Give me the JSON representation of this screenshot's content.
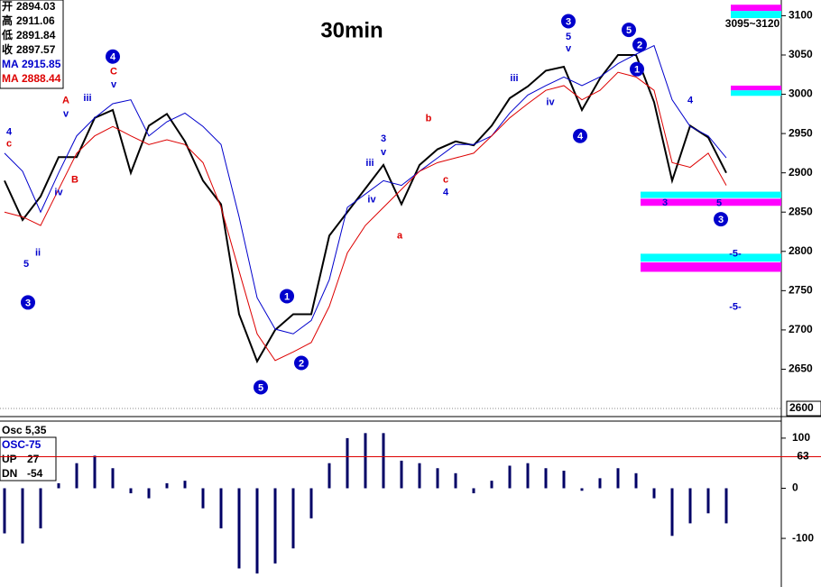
{
  "chart_data": [
    {
      "type": "line",
      "title": "30min",
      "info": [
        {
          "label": "开",
          "value": 2894.03,
          "color": "#000000"
        },
        {
          "label": "高",
          "value": 2911.06,
          "color": "#000000"
        },
        {
          "label": "低",
          "value": 2891.84,
          "color": "#000000"
        },
        {
          "label": "收",
          "value": 2897.57,
          "color": "#000000"
        },
        {
          "label": "MA",
          "value": 2915.85,
          "color": "#0000cc"
        },
        {
          "label": "MA",
          "value": 2888.44,
          "color": "#dd0000"
        }
      ],
      "ylim": [
        2592,
        3120
      ],
      "yticks": [
        2650,
        2700,
        2750,
        2800,
        2850,
        2900,
        2950,
        3000,
        3050,
        3100
      ],
      "cursor_value": 2600,
      "zone_label": "3095~3120",
      "series": [
        {
          "color": "#000000",
          "values": [
            2890,
            2840,
            2870,
            2920,
            2920,
            2970,
            2980,
            2900,
            2960,
            2975,
            2940,
            2890,
            2860,
            2720,
            2660,
            2700,
            2720,
            2720,
            2820,
            2850,
            2880,
            2910,
            2860,
            2910,
            2930,
            2940,
            2935,
            2960,
            2995,
            3010,
            3030,
            3035,
            2980,
            3020,
            3050,
            3050,
            2990,
            2890,
            2960,
            2945,
            2900
          ]
        },
        {
          "color": "#0000cc",
          "values": [
            2925,
            2902,
            2850,
            2900,
            2947,
            2970,
            2988,
            2993,
            2947,
            2965,
            2976,
            2959,
            2936,
            2844,
            2741,
            2701,
            2695,
            2712,
            2764,
            2856,
            2873,
            2890,
            2884,
            2902,
            2919,
            2936,
            2936,
            2947,
            2976,
            2999,
            3011,
            3022,
            3011,
            3022,
            3039,
            3051,
            3062,
            2993,
            2959,
            2947,
            2919
          ]
        },
        {
          "color": "#dd0000",
          "values": [
            2850,
            2844,
            2833,
            2879,
            2925,
            2947,
            2959,
            2947,
            2936,
            2942,
            2936,
            2913,
            2856,
            2775,
            2695,
            2661,
            2672,
            2684,
            2730,
            2798,
            2833,
            2856,
            2879,
            2902,
            2913,
            2919,
            2925,
            2947,
            2970,
            2988,
            3005,
            3011,
            2993,
            3005,
            3028,
            3022,
            3005,
            2913,
            2907,
            2925,
            2884
          ]
        }
      ],
      "zones": [
        {
          "start": 40.25,
          "low": 3106,
          "high": 3114,
          "color": "#ff00ff"
        },
        {
          "start": 40.25,
          "low": 3097,
          "high": 3106,
          "color": "#00ffff"
        },
        {
          "start": 40.25,
          "low": 3005,
          "high": 3011,
          "color": "#ff00ff"
        },
        {
          "start": 40.25,
          "low": 2998,
          "high": 3005,
          "color": "#00ffff"
        },
        {
          "start": 35.25,
          "low": 2868,
          "high": 2876,
          "color": "#00ffff"
        },
        {
          "start": 35.25,
          "low": 2858,
          "high": 2867,
          "color": "#ff00ff"
        },
        {
          "start": 35.25,
          "low": 2787,
          "high": 2797,
          "color": "#00ffff"
        },
        {
          "start": 35.25,
          "low": 2774,
          "high": 2786,
          "color": "#ff00ff"
        }
      ],
      "annotations": [
        {
          "text": "3",
          "circled": true,
          "x": 1.3,
          "y": 2735,
          "color": "#0000cc"
        },
        {
          "text": "4",
          "circled": true,
          "x": 6,
          "y": 3048,
          "color": "#0000cc"
        },
        {
          "text": "5",
          "circled": true,
          "x": 14.2,
          "y": 2627,
          "color": "#0000cc"
        },
        {
          "text": "1",
          "circled": true,
          "x": 15.65,
          "y": 2743,
          "color": "#0000cc"
        },
        {
          "text": "2",
          "circled": true,
          "x": 16.45,
          "y": 2658,
          "color": "#0000cc"
        },
        {
          "text": "3",
          "circled": true,
          "x": 31.25,
          "y": 3093,
          "color": "#0000cc"
        },
        {
          "text": "4",
          "circled": true,
          "x": 31.9,
          "y": 2947,
          "color": "#0000cc"
        },
        {
          "text": "5",
          "circled": true,
          "x": 34.6,
          "y": 3082,
          "color": "#0000cc"
        },
        {
          "text": "2",
          "circled": true,
          "x": 35.2,
          "y": 3063,
          "color": "#0000cc"
        },
        {
          "text": "1",
          "circled": true,
          "x": 35.05,
          "y": 3032,
          "color": "#0000cc"
        },
        {
          "text": "3",
          "circled": true,
          "x": 39.7,
          "y": 2841,
          "color": "#0000cc"
        },
        {
          "text": "4",
          "circled": false,
          "x": 0.25,
          "y": 2953,
          "color": "#0000cc"
        },
        {
          "text": "c",
          "circled": false,
          "x": 0.25,
          "y": 2938,
          "color": "#dd0000"
        },
        {
          "text": "5",
          "circled": false,
          "x": 1.2,
          "y": 2785,
          "color": "#0000cc"
        },
        {
          "text": "ii",
          "circled": false,
          "x": 1.85,
          "y": 2799,
          "color": "#0000cc"
        },
        {
          "text": "iv",
          "circled": false,
          "x": 3,
          "y": 2876,
          "color": "#0000cc"
        },
        {
          "text": "A",
          "circled": false,
          "x": 3.4,
          "y": 2993,
          "color": "#dd0000"
        },
        {
          "text": "v",
          "circled": false,
          "x": 3.4,
          "y": 2976,
          "color": "#0000cc"
        },
        {
          "text": "B",
          "circled": false,
          "x": 3.9,
          "y": 2892,
          "color": "#dd0000"
        },
        {
          "text": "iii",
          "circled": false,
          "x": 4.6,
          "y": 2996,
          "color": "#0000cc"
        },
        {
          "text": "C",
          "circled": false,
          "x": 6.05,
          "y": 3030,
          "color": "#dd0000"
        },
        {
          "text": "v",
          "circled": false,
          "x": 6.05,
          "y": 3013,
          "color": "#0000cc"
        },
        {
          "text": "iii",
          "circled": false,
          "x": 20.25,
          "y": 2913,
          "color": "#0000cc"
        },
        {
          "text": "iv",
          "circled": false,
          "x": 20.35,
          "y": 2867,
          "color": "#0000cc"
        },
        {
          "text": "3",
          "circled": false,
          "x": 21,
          "y": 2944,
          "color": "#0000cc"
        },
        {
          "text": "v",
          "circled": false,
          "x": 21,
          "y": 2927,
          "color": "#0000cc"
        },
        {
          "text": "a",
          "circled": false,
          "x": 21.9,
          "y": 2821,
          "color": "#dd0000"
        },
        {
          "text": "b",
          "circled": false,
          "x": 23.5,
          "y": 2970,
          "color": "#dd0000"
        },
        {
          "text": "c",
          "circled": false,
          "x": 24.45,
          "y": 2892,
          "color": "#dd0000"
        },
        {
          "text": "4",
          "circled": false,
          "x": 24.45,
          "y": 2876,
          "color": "#0000cc"
        },
        {
          "text": "iii",
          "circled": false,
          "x": 28.25,
          "y": 3021,
          "color": "#0000cc"
        },
        {
          "text": "iv",
          "circled": false,
          "x": 30.25,
          "y": 2991,
          "color": "#0000cc"
        },
        {
          "text": "5",
          "circled": false,
          "x": 31.25,
          "y": 3074,
          "color": "#0000cc"
        },
        {
          "text": "v",
          "circled": false,
          "x": 31.25,
          "y": 3059,
          "color": "#0000cc"
        },
        {
          "text": "3",
          "circled": false,
          "x": 36.6,
          "y": 2863,
          "color": "#0000cc"
        },
        {
          "text": "4",
          "circled": false,
          "x": 38,
          "y": 2993,
          "color": "#0000cc"
        },
        {
          "text": "5",
          "circled": false,
          "x": 39.6,
          "y": 2862,
          "color": "#0000cc"
        },
        {
          "text": "-5-",
          "circled": false,
          "x": 40.5,
          "y": 2798,
          "color": "#0000cc"
        },
        {
          "text": "-5-",
          "circled": false,
          "x": 40.5,
          "y": 2730,
          "color": "#0000cc"
        }
      ]
    },
    {
      "type": "bar",
      "title": "Osc 5,35",
      "subtitle": "OSC-75",
      "info": [
        {
          "label": "UP",
          "value": 27
        },
        {
          "label": "DN",
          "value": -54
        }
      ],
      "ylim": [
        -197,
        134
      ],
      "yticks": [
        100,
        0,
        -100
      ],
      "threshold": 63,
      "color": "#000066",
      "values": [
        -90,
        -110,
        -80,
        10,
        50,
        65,
        40,
        -10,
        -20,
        10,
        15,
        -40,
        -80,
        -160,
        -170,
        -150,
        -120,
        -60,
        50,
        100,
        110,
        110,
        55,
        50,
        40,
        30,
        -10,
        15,
        45,
        50,
        40,
        35,
        -5,
        20,
        40,
        30,
        -20,
        -95,
        -70,
        -50,
        -70
      ]
    }
  ]
}
